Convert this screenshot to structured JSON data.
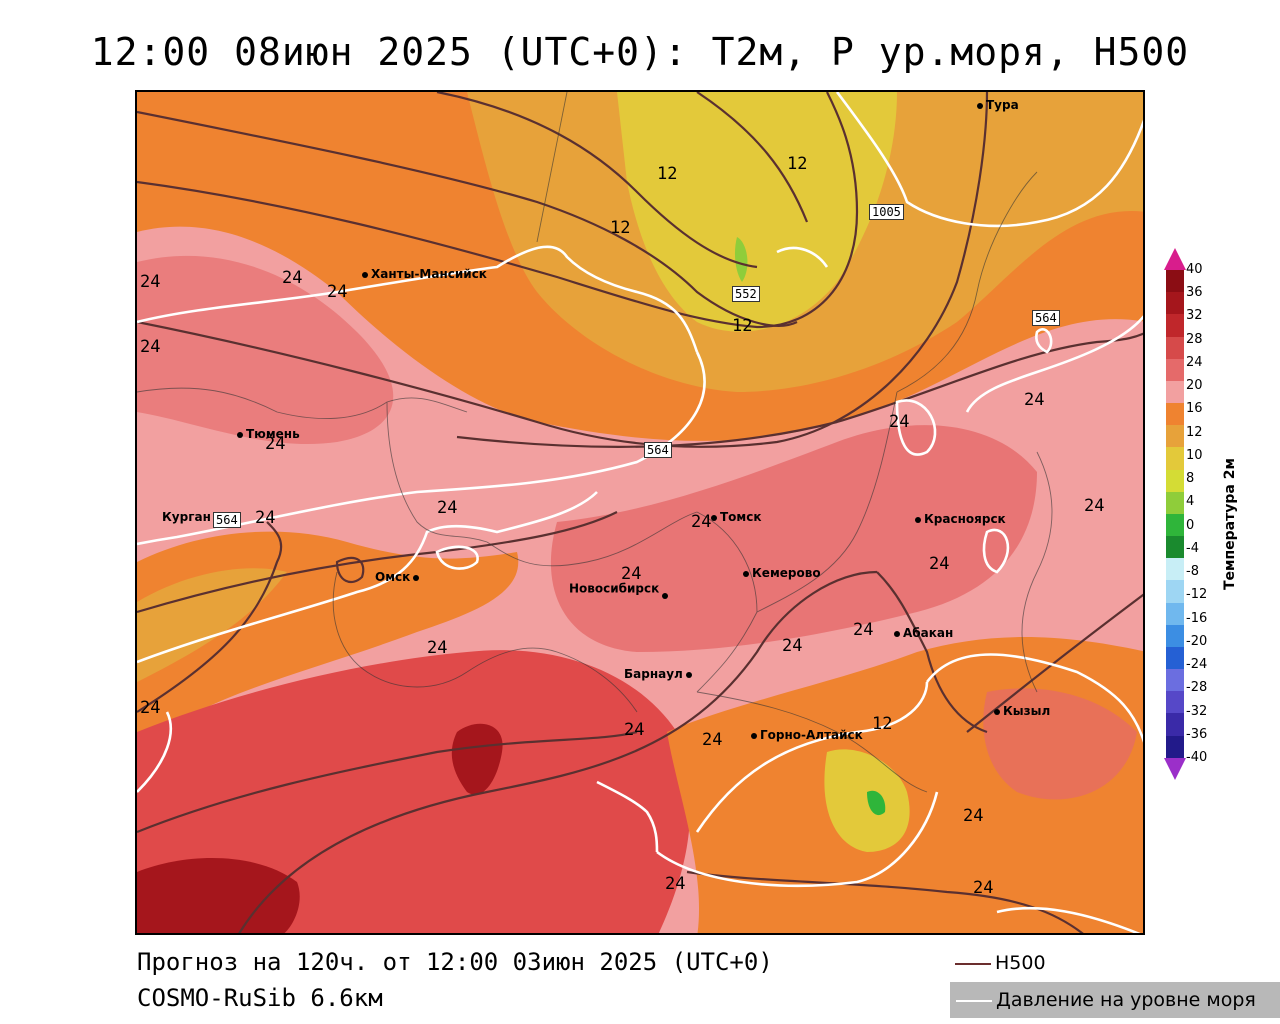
{
  "header": {
    "title": "12:00 08июн 2025 (UTC+0): T2м, P ур.моря, H500"
  },
  "footer": {
    "forecast": "Прогноз на 120ч. от 12:00 03июн 2025 (UTC+0)",
    "model": "COSMO-RuSib 6.6км"
  },
  "legend": {
    "h500": "H500",
    "pressure": "Давление на уровне моря"
  },
  "colorbar": {
    "title": "Температура 2м",
    "ticks": [
      "40",
      "36",
      "32",
      "28",
      "24",
      "20",
      "16",
      "12",
      "10",
      "8",
      "4",
      "0",
      "-4",
      "-8",
      "-12",
      "-16",
      "-20",
      "-24",
      "-28",
      "-32",
      "-36",
      "-40"
    ],
    "colors": [
      "#8b0d14",
      "#a5161c",
      "#c0272b",
      "#d64a4a",
      "#e56a6a",
      "#f2a0a0",
      "#ef8330",
      "#e7a23a",
      "#e3c93a",
      "#d4dc35",
      "#8fcd3a",
      "#2fb53a",
      "#1a8a2e",
      "#c8eef6",
      "#9ed6f3",
      "#70b8ee",
      "#3c8ee3",
      "#2560d4",
      "#6b6ee0",
      "#5648c8",
      "#3a2aa8",
      "#221a8a"
    ],
    "top_arrow": "#d81d8c",
    "bottom_arrow": "#9b2fc9"
  },
  "map": {
    "cities": [
      {
        "name": "Тура",
        "label": "Тура"
      },
      {
        "name": "Ханты-Мансийск",
        "label": "Ханты-Мансийск"
      },
      {
        "name": "Тюмень",
        "label": "Тюмень"
      },
      {
        "name": "Курган",
        "label": "Курган"
      },
      {
        "name": "Омск",
        "label": "Омск"
      },
      {
        "name": "Томск",
        "label": "Томск"
      },
      {
        "name": "Новосибирск",
        "label": "Новосибирск"
      },
      {
        "name": "Кемерово",
        "label": "Кемерово"
      },
      {
        "name": "Красноярск",
        "label": "Красноярск"
      },
      {
        "name": "Абакан",
        "label": "Абакан"
      },
      {
        "name": "Барнаул",
        "label": "Барнаул"
      },
      {
        "name": "Горно-Алтайск",
        "label": "Горно-Алтайск"
      },
      {
        "name": "Кызыл",
        "label": "Кызыл"
      }
    ],
    "h500_labels": [
      "552",
      "564",
      "564",
      "564"
    ],
    "pressure_labels": [
      "1005"
    ],
    "temp_labels": [
      "12",
      "12",
      "12",
      "12",
      "12",
      "24",
      "24",
      "24",
      "24",
      "24",
      "24",
      "24",
      "24",
      "24",
      "24",
      "24",
      "24",
      "24",
      "24",
      "24",
      "24",
      "24",
      "24",
      "24",
      "24",
      "24",
      "24"
    ]
  }
}
